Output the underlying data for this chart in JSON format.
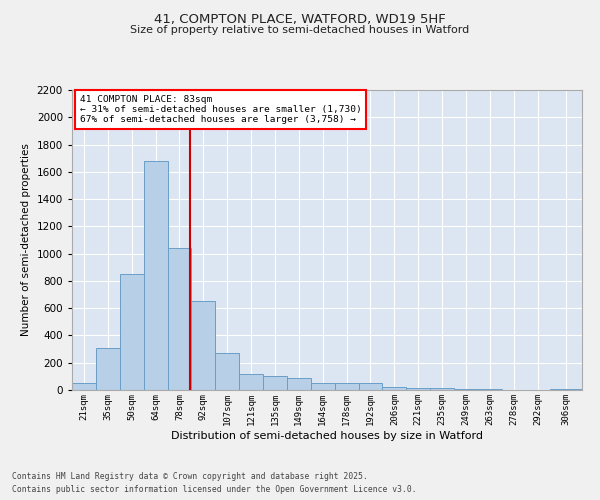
{
  "title1": "41, COMPTON PLACE, WATFORD, WD19 5HF",
  "title2": "Size of property relative to semi-detached houses in Watford",
  "xlabel": "Distribution of semi-detached houses by size in Watford",
  "ylabel": "Number of semi-detached properties",
  "annotation_title": "41 COMPTON PLACE: 83sqm",
  "annotation_line1": "← 31% of semi-detached houses are smaller (1,730)",
  "annotation_line2": "67% of semi-detached houses are larger (3,758) →",
  "footer1": "Contains HM Land Registry data © Crown copyright and database right 2025.",
  "footer2": "Contains public sector information licensed under the Open Government Licence v3.0.",
  "bar_color": "#b8cfe8",
  "bar_edge_color": "#6a9fc8",
  "vline_color": "#cc0000",
  "vline_x": 83,
  "bg_color": "#dce6f2",
  "fig_color": "#f0f0f0",
  "grid_color": "#ffffff",
  "categories": [
    "21sqm",
    "35sqm",
    "50sqm",
    "64sqm",
    "78sqm",
    "92sqm",
    "107sqm",
    "121sqm",
    "135sqm",
    "149sqm",
    "164sqm",
    "178sqm",
    "192sqm",
    "206sqm",
    "221sqm",
    "235sqm",
    "249sqm",
    "263sqm",
    "278sqm",
    "292sqm",
    "306sqm"
  ],
  "bin_edges": [
    14,
    28,
    42,
    56,
    70,
    84,
    98,
    112,
    126,
    140,
    154,
    168,
    182,
    196,
    210,
    224,
    238,
    252,
    266,
    280,
    294,
    313
  ],
  "values": [
    50,
    310,
    850,
    1680,
    1040,
    650,
    270,
    120,
    100,
    90,
    55,
    50,
    50,
    25,
    15,
    15,
    5,
    10,
    3,
    2,
    5
  ],
  "ylim": [
    0,
    2200
  ],
  "yticks": [
    0,
    200,
    400,
    600,
    800,
    1000,
    1200,
    1400,
    1600,
    1800,
    2000,
    2200
  ]
}
